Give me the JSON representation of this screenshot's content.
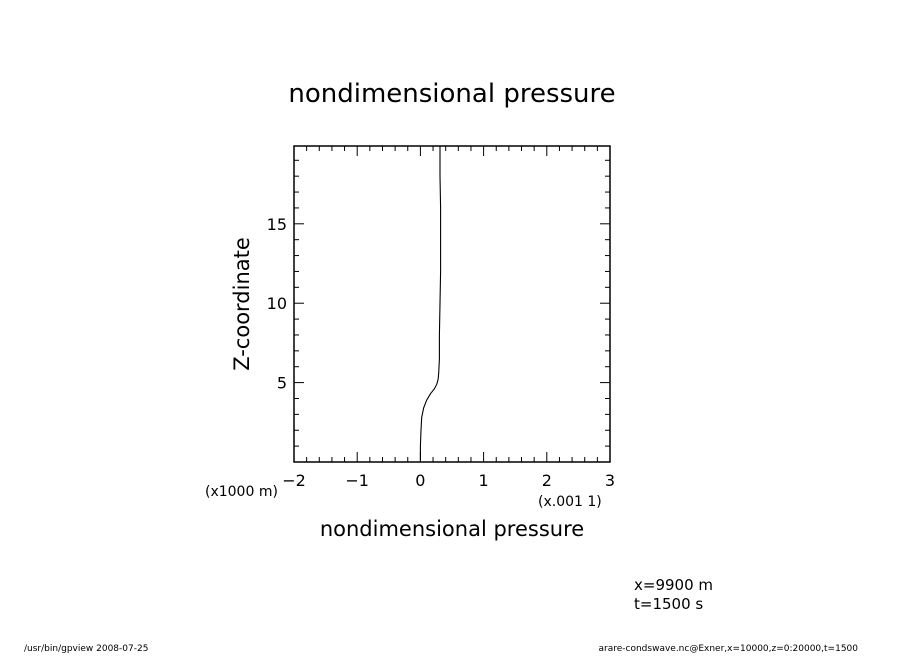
{
  "chart_data": {
    "type": "line",
    "title": "nondimensional pressure",
    "xlabel": "nondimensional pressure",
    "ylabel": "Z-coordinate",
    "x_multiplier_label": "(x.001 1)",
    "y_multiplier_label": "(x1000 m)",
    "xlim": [
      -2,
      3
    ],
    "ylim": [
      0,
      19.9
    ],
    "x_ticks": [
      "-2",
      "-1",
      "0",
      "1",
      "2",
      "3"
    ],
    "y_ticks": [
      "5",
      "10",
      "15"
    ],
    "grid": false,
    "legend": "none",
    "series": [
      {
        "x": [
          0.0,
          0.0,
          0.01,
          0.02,
          0.05,
          0.1,
          0.16,
          0.22,
          0.26,
          0.28,
          0.29,
          0.3,
          0.3,
          0.31,
          0.32,
          0.32,
          0.32,
          0.31,
          0.31
        ],
        "y": [
          0,
          1,
          2,
          2.8,
          3.4,
          3.9,
          4.3,
          4.6,
          4.9,
          5.2,
          5.6,
          6.5,
          8,
          10,
          12,
          14,
          16,
          18,
          19.9
        ]
      }
    ]
  },
  "info": {
    "line1": "x=9900  m",
    "line2": "t=1500  s"
  },
  "footer": {
    "left": "/usr/bin/gpview   2008-07-25",
    "right": "arare-condswave.nc@Exner,x=10000,z=0:20000,t=1500"
  }
}
